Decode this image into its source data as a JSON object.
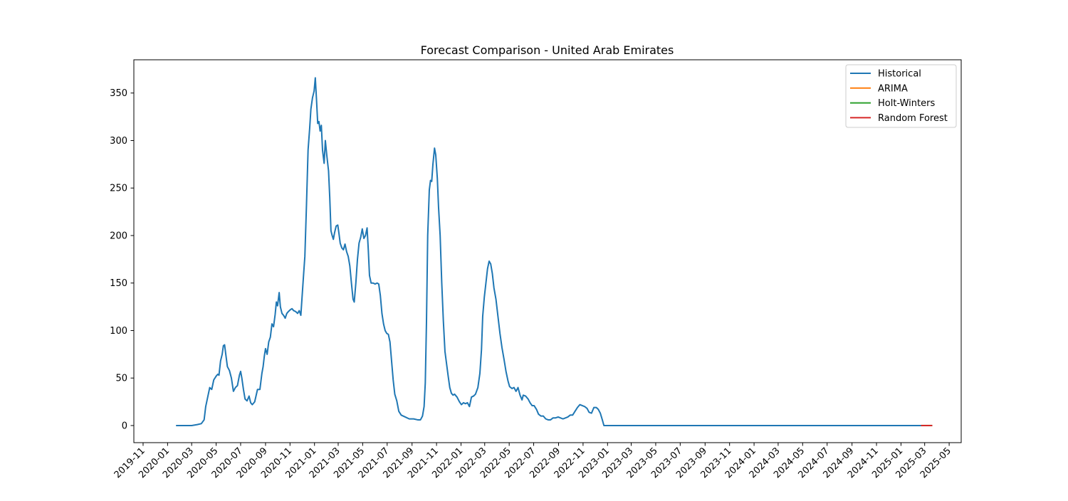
{
  "chart_data": {
    "type": "line",
    "title": "Forecast Comparison - United Arab Emirates",
    "xlabel": "",
    "ylabel": "",
    "grid": false,
    "legend_position": "top-right",
    "xlim": [
      "2019-10-09",
      "2025-05-31"
    ],
    "ylim": [
      -18,
      385
    ],
    "y_ticks": [
      0,
      50,
      100,
      150,
      200,
      250,
      300,
      350
    ],
    "x_ticks": [
      "2019-11",
      "2020-01",
      "2020-03",
      "2020-05",
      "2020-07",
      "2020-09",
      "2020-11",
      "2021-01",
      "2021-03",
      "2021-05",
      "2021-07",
      "2021-09",
      "2021-11",
      "2022-01",
      "2022-03",
      "2022-05",
      "2022-07",
      "2022-09",
      "2022-11",
      "2023-01",
      "2023-03",
      "2023-05",
      "2023-07",
      "2023-09",
      "2023-11",
      "2024-01",
      "2024-03",
      "2024-05",
      "2024-07",
      "2024-09",
      "2024-11",
      "2025-01",
      "2025-03",
      "2025-05"
    ],
    "series": [
      {
        "name": "Historical",
        "color": "#1f77b4",
        "points": [
          [
            "2020-01-22",
            0
          ],
          [
            "2020-02-10",
            0
          ],
          [
            "2020-03-01",
            0
          ],
          [
            "2020-03-15",
            1
          ],
          [
            "2020-03-25",
            2
          ],
          [
            "2020-04-01",
            6
          ],
          [
            "2020-04-05",
            20
          ],
          [
            "2020-04-10",
            30
          ],
          [
            "2020-04-15",
            40
          ],
          [
            "2020-04-20",
            38
          ],
          [
            "2020-04-25",
            48
          ],
          [
            "2020-05-01",
            52
          ],
          [
            "2020-05-05",
            54
          ],
          [
            "2020-05-08",
            53
          ],
          [
            "2020-05-12",
            68
          ],
          [
            "2020-05-16",
            75
          ],
          [
            "2020-05-19",
            84
          ],
          [
            "2020-05-22",
            85
          ],
          [
            "2020-05-25",
            75
          ],
          [
            "2020-05-29",
            62
          ],
          [
            "2020-06-03",
            58
          ],
          [
            "2020-06-08",
            50
          ],
          [
            "2020-06-13",
            36
          ],
          [
            "2020-06-18",
            40
          ],
          [
            "2020-06-23",
            42
          ],
          [
            "2020-06-28",
            53
          ],
          [
            "2020-07-01",
            57
          ],
          [
            "2020-07-04",
            50
          ],
          [
            "2020-07-08",
            38
          ],
          [
            "2020-07-12",
            28
          ],
          [
            "2020-07-17",
            26
          ],
          [
            "2020-07-22",
            31
          ],
          [
            "2020-07-26",
            24
          ],
          [
            "2020-07-30",
            22
          ],
          [
            "2020-08-05",
            25
          ],
          [
            "2020-08-12",
            38
          ],
          [
            "2020-08-18",
            38
          ],
          [
            "2020-08-23",
            55
          ],
          [
            "2020-08-26",
            62
          ],
          [
            "2020-08-29",
            73
          ],
          [
            "2020-09-01",
            81
          ],
          [
            "2020-09-05",
            75
          ],
          [
            "2020-09-09",
            88
          ],
          [
            "2020-09-13",
            93
          ],
          [
            "2020-09-17",
            107
          ],
          [
            "2020-09-21",
            104
          ],
          [
            "2020-09-25",
            117
          ],
          [
            "2020-09-28",
            130
          ],
          [
            "2020-10-01",
            126
          ],
          [
            "2020-10-05",
            140
          ],
          [
            "2020-10-08",
            125
          ],
          [
            "2020-10-12",
            118
          ],
          [
            "2020-10-16",
            116
          ],
          [
            "2020-10-20",
            113
          ],
          [
            "2020-10-24",
            118
          ],
          [
            "2020-10-28",
            120
          ],
          [
            "2020-11-02",
            122
          ],
          [
            "2020-11-06",
            123
          ],
          [
            "2020-11-10",
            121
          ],
          [
            "2020-11-15",
            120
          ],
          [
            "2020-11-20",
            118
          ],
          [
            "2020-11-24",
            121
          ],
          [
            "2020-11-28",
            116
          ],
          [
            "2020-12-01",
            135
          ],
          [
            "2020-12-05",
            160
          ],
          [
            "2020-12-08",
            178
          ],
          [
            "2020-12-12",
            232
          ],
          [
            "2020-12-16",
            290
          ],
          [
            "2020-12-20",
            313
          ],
          [
            "2020-12-23",
            333
          ],
          [
            "2020-12-27",
            345
          ],
          [
            "2020-12-31",
            352
          ],
          [
            "2021-01-03",
            366
          ],
          [
            "2021-01-06",
            343
          ],
          [
            "2021-01-09",
            318
          ],
          [
            "2021-01-12",
            320
          ],
          [
            "2021-01-15",
            310
          ],
          [
            "2021-01-18",
            316
          ],
          [
            "2021-01-21",
            290
          ],
          [
            "2021-01-25",
            276
          ],
          [
            "2021-01-28",
            300
          ],
          [
            "2021-02-01",
            283
          ],
          [
            "2021-02-05",
            268
          ],
          [
            "2021-02-08",
            240
          ],
          [
            "2021-02-11",
            205
          ],
          [
            "2021-02-14",
            200
          ],
          [
            "2021-02-17",
            196
          ],
          [
            "2021-02-20",
            203
          ],
          [
            "2021-02-24",
            210
          ],
          [
            "2021-02-28",
            211
          ],
          [
            "2021-03-03",
            202
          ],
          [
            "2021-03-06",
            192
          ],
          [
            "2021-03-10",
            187
          ],
          [
            "2021-03-14",
            185
          ],
          [
            "2021-03-18",
            191
          ],
          [
            "2021-03-22",
            183
          ],
          [
            "2021-03-26",
            178
          ],
          [
            "2021-03-30",
            168
          ],
          [
            "2021-04-03",
            150
          ],
          [
            "2021-04-07",
            133
          ],
          [
            "2021-04-10",
            130
          ],
          [
            "2021-04-14",
            150
          ],
          [
            "2021-04-18",
            175
          ],
          [
            "2021-04-22",
            192
          ],
          [
            "2021-04-26",
            198
          ],
          [
            "2021-04-30",
            207
          ],
          [
            "2021-05-04",
            197
          ],
          [
            "2021-05-08",
            200
          ],
          [
            "2021-05-12",
            208
          ],
          [
            "2021-05-15",
            185
          ],
          [
            "2021-05-18",
            158
          ],
          [
            "2021-05-22",
            150
          ],
          [
            "2021-05-27",
            150
          ],
          [
            "2021-06-01",
            149
          ],
          [
            "2021-06-06",
            150
          ],
          [
            "2021-06-10",
            149
          ],
          [
            "2021-06-14",
            137
          ],
          [
            "2021-06-18",
            118
          ],
          [
            "2021-06-22",
            107
          ],
          [
            "2021-06-26",
            100
          ],
          [
            "2021-06-30",
            97
          ],
          [
            "2021-07-04",
            96
          ],
          [
            "2021-07-08",
            88
          ],
          [
            "2021-07-12",
            68
          ],
          [
            "2021-07-16",
            48
          ],
          [
            "2021-07-20",
            33
          ],
          [
            "2021-07-25",
            26
          ],
          [
            "2021-07-30",
            15
          ],
          [
            "2021-08-05",
            11
          ],
          [
            "2021-08-15",
            9
          ],
          [
            "2021-08-25",
            7
          ],
          [
            "2021-09-05",
            7
          ],
          [
            "2021-09-15",
            6
          ],
          [
            "2021-09-22",
            6
          ],
          [
            "2021-09-27",
            10
          ],
          [
            "2021-10-01",
            20
          ],
          [
            "2021-10-04",
            45
          ],
          [
            "2021-10-07",
            110
          ],
          [
            "2021-10-10",
            200
          ],
          [
            "2021-10-14",
            248
          ],
          [
            "2021-10-17",
            258
          ],
          [
            "2021-10-20",
            257
          ],
          [
            "2021-10-23",
            275
          ],
          [
            "2021-10-27",
            292
          ],
          [
            "2021-10-30",
            285
          ],
          [
            "2021-11-03",
            260
          ],
          [
            "2021-11-06",
            230
          ],
          [
            "2021-11-10",
            200
          ],
          [
            "2021-11-14",
            150
          ],
          [
            "2021-11-18",
            110
          ],
          [
            "2021-11-22",
            78
          ],
          [
            "2021-11-26",
            65
          ],
          [
            "2021-11-30",
            52
          ],
          [
            "2021-12-04",
            40
          ],
          [
            "2021-12-08",
            34
          ],
          [
            "2021-12-12",
            32
          ],
          [
            "2021-12-16",
            33
          ],
          [
            "2021-12-22",
            30
          ],
          [
            "2021-12-28",
            25
          ],
          [
            "2022-01-02",
            22
          ],
          [
            "2022-01-07",
            24
          ],
          [
            "2022-01-12",
            23
          ],
          [
            "2022-01-17",
            24
          ],
          [
            "2022-01-22",
            20
          ],
          [
            "2022-01-27",
            30
          ],
          [
            "2022-02-01",
            31
          ],
          [
            "2022-02-06",
            33
          ],
          [
            "2022-02-12",
            40
          ],
          [
            "2022-02-17",
            55
          ],
          [
            "2022-02-21",
            80
          ],
          [
            "2022-02-24",
            115
          ],
          [
            "2022-02-28",
            135
          ],
          [
            "2022-03-04",
            150
          ],
          [
            "2022-03-08",
            165
          ],
          [
            "2022-03-12",
            173
          ],
          [
            "2022-03-16",
            170
          ],
          [
            "2022-03-20",
            160
          ],
          [
            "2022-03-24",
            145
          ],
          [
            "2022-03-29",
            133
          ],
          [
            "2022-04-03",
            115
          ],
          [
            "2022-04-08",
            97
          ],
          [
            "2022-04-13",
            82
          ],
          [
            "2022-04-18",
            70
          ],
          [
            "2022-04-23",
            57
          ],
          [
            "2022-04-28",
            47
          ],
          [
            "2022-05-02",
            41
          ],
          [
            "2022-05-08",
            39
          ],
          [
            "2022-05-13",
            40
          ],
          [
            "2022-05-18",
            36
          ],
          [
            "2022-05-23",
            40
          ],
          [
            "2022-05-28",
            32
          ],
          [
            "2022-06-02",
            27
          ],
          [
            "2022-06-05",
            32
          ],
          [
            "2022-06-11",
            31
          ],
          [
            "2022-06-17",
            28
          ],
          [
            "2022-06-22",
            24
          ],
          [
            "2022-06-27",
            21
          ],
          [
            "2022-07-02",
            21
          ],
          [
            "2022-07-08",
            17
          ],
          [
            "2022-07-13",
            12
          ],
          [
            "2022-07-19",
            10
          ],
          [
            "2022-07-25",
            10
          ],
          [
            "2022-07-31",
            7
          ],
          [
            "2022-08-06",
            6
          ],
          [
            "2022-08-12",
            6
          ],
          [
            "2022-08-18",
            8
          ],
          [
            "2022-08-24",
            8
          ],
          [
            "2022-08-31",
            9
          ],
          [
            "2022-09-06",
            8
          ],
          [
            "2022-09-12",
            7
          ],
          [
            "2022-09-18",
            8
          ],
          [
            "2022-09-24",
            9
          ],
          [
            "2022-09-30",
            11
          ],
          [
            "2022-10-06",
            11
          ],
          [
            "2022-10-12",
            15
          ],
          [
            "2022-10-18",
            19
          ],
          [
            "2022-10-24",
            22
          ],
          [
            "2022-10-30",
            21
          ],
          [
            "2022-11-05",
            20
          ],
          [
            "2022-11-11",
            18
          ],
          [
            "2022-11-16",
            14
          ],
          [
            "2022-11-22",
            13
          ],
          [
            "2022-11-28",
            19
          ],
          [
            "2022-12-04",
            19
          ],
          [
            "2022-12-09",
            17
          ],
          [
            "2022-12-14",
            13
          ],
          [
            "2022-12-19",
            6
          ],
          [
            "2022-12-23",
            0
          ],
          [
            "2023-03-01",
            0
          ],
          [
            "2023-06-01",
            0
          ],
          [
            "2023-09-01",
            0
          ],
          [
            "2023-12-01",
            0
          ],
          [
            "2024-03-01",
            0
          ],
          [
            "2024-06-01",
            0
          ],
          [
            "2024-09-01",
            0
          ],
          [
            "2024-12-01",
            0
          ],
          [
            "2025-02-20",
            0
          ]
        ]
      },
      {
        "name": "ARIMA",
        "color": "#ff7f0e",
        "points": [
          [
            "2025-02-20",
            0
          ],
          [
            "2025-03-20",
            0
          ]
        ]
      },
      {
        "name": "Holt-Winters",
        "color": "#2ca02c",
        "points": [
          [
            "2025-02-20",
            0
          ],
          [
            "2025-03-20",
            0
          ]
        ]
      },
      {
        "name": "Random Forest",
        "color": "#d62728",
        "points": [
          [
            "2025-02-20",
            0
          ],
          [
            "2025-03-20",
            0
          ]
        ]
      }
    ]
  }
}
